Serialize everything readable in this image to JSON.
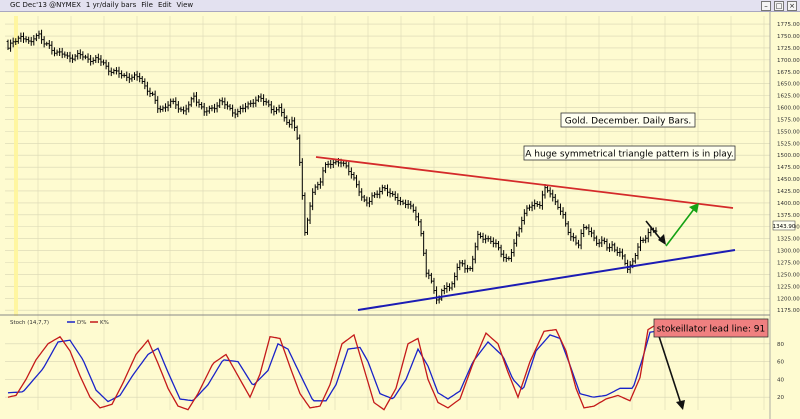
{
  "menubar": {
    "symbol": "GC Dec'13 @NYMEX",
    "period": "1 yr/daily bars",
    "items": [
      "File",
      "Edit",
      "View"
    ]
  },
  "chart_data": [
    {
      "type": "line",
      "variant": "ohlc-bars",
      "title": "",
      "xlabel": "",
      "ylabel": "",
      "ylim": [
        1167,
        1792
      ],
      "y_ticks": [
        "1775.00",
        "1750.00",
        "1725.00",
        "1700.00",
        "1675.00",
        "1650.00",
        "1625.00",
        "1600.00",
        "1575.00",
        "1550.00",
        "1525.00",
        "1500.00",
        "1475.00",
        "1450.00",
        "1425.00",
        "1400.00",
        "1375.00",
        "1350.00",
        "1325.00",
        "1300.00",
        "1275.00",
        "1250.00",
        "1225.00",
        "1200.00",
        "1175.00"
      ],
      "last_price": "1343.90",
      "grid": true,
      "bars_count": 252,
      "price_anchors": [
        [
          0,
          1722
        ],
        [
          6,
          1742
        ],
        [
          12,
          1748
        ],
        [
          18,
          1742
        ],
        [
          22,
          1732
        ],
        [
          26,
          1750
        ],
        [
          30,
          1756
        ],
        [
          35,
          1735
        ],
        [
          42,
          1728
        ],
        [
          48,
          1715
        ],
        [
          55,
          1712
        ],
        [
          60,
          1705
        ],
        [
          68,
          1708
        ],
        [
          72,
          1710
        ],
        [
          80,
          1702
        ],
        [
          88,
          1700
        ],
        [
          95,
          1696
        ],
        [
          100,
          1680
        ],
        [
          108,
          1672
        ],
        [
          112,
          1672
        ],
        [
          118,
          1665
        ],
        [
          124,
          1662
        ],
        [
          132,
          1665
        ],
        [
          138,
          1640
        ],
        [
          145,
          1622
        ],
        [
          150,
          1600
        ],
        [
          156,
          1598
        ],
        [
          162,
          1610
        ],
        [
          168,
          1608
        ],
        [
          175,
          1590
        ],
        [
          181,
          1605
        ],
        [
          186,
          1625
        ],
        [
          191,
          1608
        ],
        [
          196,
          1590
        ],
        [
          204,
          1598
        ],
        [
          212,
          1612
        ],
        [
          218,
          1605
        ],
        [
          224,
          1592
        ],
        [
          230,
          1590
        ],
        [
          238,
          1603
        ],
        [
          246,
          1615
        ],
        [
          252,
          1618
        ],
        [
          258,
          1612
        ],
        [
          263,
          1600
        ],
        [
          268,
          1590
        ],
        [
          272,
          1598
        ],
        [
          276,
          1582
        ],
        [
          280,
          1562
        ],
        [
          284,
          1575
        ],
        [
          288,
          1545
        ],
        [
          290,
          1520
        ],
        [
          293,
          1460
        ],
        [
          297,
          1335
        ],
        [
          300,
          1370
        ],
        [
          304,
          1420
        ],
        [
          308,
          1430
        ],
        [
          312,
          1445
        ],
        [
          316,
          1478
        ],
        [
          320,
          1482
        ],
        [
          326,
          1480
        ],
        [
          332,
          1490
        ],
        [
          338,
          1477
        ],
        [
          344,
          1455
        ],
        [
          350,
          1435
        ],
        [
          355,
          1405
        ],
        [
          360,
          1398
        ],
        [
          365,
          1415
        ],
        [
          370,
          1425
        ],
        [
          376,
          1430
        ],
        [
          382,
          1418
        ],
        [
          388,
          1415
        ],
        [
          394,
          1395
        ],
        [
          400,
          1398
        ],
        [
          406,
          1385
        ],
        [
          410,
          1365
        ],
        [
          414,
          1320
        ],
        [
          418,
          1255
        ],
        [
          422,
          1245
        ],
        [
          426,
          1220
        ],
        [
          430,
          1185
        ],
        [
          434,
          1215
        ],
        [
          438,
          1228
        ],
        [
          442,
          1220
        ],
        [
          446,
          1245
        ],
        [
          450,
          1265
        ],
        [
          454,
          1275
        ],
        [
          458,
          1262
        ],
        [
          462,
          1262
        ],
        [
          466,
          1295
        ],
        [
          470,
          1330
        ],
        [
          476,
          1328
        ],
        [
          482,
          1322
        ],
        [
          488,
          1310
        ],
        [
          492,
          1300
        ],
        [
          496,
          1288
        ],
        [
          500,
          1278
        ],
        [
          504,
          1300
        ],
        [
          508,
          1325
        ],
        [
          514,
          1370
        ],
        [
          520,
          1390
        ],
        [
          526,
          1395
        ],
        [
          532,
          1400
        ],
        [
          536,
          1430
        ],
        [
          542,
          1420
        ],
        [
          546,
          1405
        ],
        [
          550,
          1395
        ],
        [
          554,
          1380
        ],
        [
          558,
          1350
        ],
        [
          562,
          1330
        ],
        [
          566,
          1325
        ],
        [
          570,
          1312
        ],
        [
          574,
          1340
        ],
        [
          578,
          1348
        ],
        [
          584,
          1335
        ],
        [
          588,
          1320
        ],
        [
          592,
          1315
        ],
        [
          596,
          1318
        ],
        [
          600,
          1305
        ],
        [
          604,
          1312
        ],
        [
          608,
          1300
        ],
        [
          612,
          1292
        ],
        [
          616,
          1280
        ],
        [
          620,
          1262
        ],
        [
          624,
          1275
        ],
        [
          628,
          1295
        ],
        [
          632,
          1315
        ],
        [
          636,
          1325
        ],
        [
          640,
          1338
        ],
        [
          644,
          1345
        ],
        [
          648,
          1340
        ]
      ]
    },
    {
      "type": "line",
      "title": "Stoch (14,7,7)",
      "legend": [
        "D%",
        "K%"
      ],
      "ylim": [
        0,
        100
      ],
      "y_ticks": [
        "80",
        "60",
        "40",
        "20"
      ],
      "series": [
        {
          "name": "D%",
          "color": "#1a23c8",
          "anchors": [
            [
              0,
              25
            ],
            [
              15,
              26
            ],
            [
              35,
              52
            ],
            [
              50,
              82
            ],
            [
              62,
              84
            ],
            [
              75,
              62
            ],
            [
              88,
              28
            ],
            [
              100,
              15
            ],
            [
              112,
              22
            ],
            [
              125,
              45
            ],
            [
              140,
              68
            ],
            [
              150,
              75
            ],
            [
              160,
              48
            ],
            [
              172,
              18
            ],
            [
              185,
              16
            ],
            [
              200,
              34
            ],
            [
              215,
              62
            ],
            [
              230,
              60
            ],
            [
              245,
              33
            ],
            [
              260,
              50
            ],
            [
              270,
              80
            ],
            [
              280,
              74
            ],
            [
              292,
              46
            ],
            [
              305,
              16
            ],
            [
              318,
              16
            ],
            [
              328,
              34
            ],
            [
              340,
              74
            ],
            [
              352,
              76
            ],
            [
              360,
              60
            ],
            [
              372,
              24
            ],
            [
              385,
              18
            ],
            [
              398,
              40
            ],
            [
              410,
              74
            ],
            [
              420,
              55
            ],
            [
              430,
              25
            ],
            [
              440,
              18
            ],
            [
              452,
              27
            ],
            [
              465,
              60
            ],
            [
              480,
              82
            ],
            [
              495,
              66
            ],
            [
              505,
              40
            ],
            [
              515,
              28
            ],
            [
              528,
              72
            ],
            [
              542,
              90
            ],
            [
              552,
              86
            ],
            [
              562,
              56
            ],
            [
              572,
              24
            ],
            [
              585,
              20
            ],
            [
              598,
              22
            ],
            [
              612,
              30
            ],
            [
              625,
              30
            ],
            [
              635,
              65
            ],
            [
              642,
              93
            ],
            [
              648,
              94
            ]
          ]
        },
        {
          "name": "K%",
          "color": "#c41a1a",
          "anchors": [
            [
              0,
              20
            ],
            [
              8,
              22
            ],
            [
              18,
              40
            ],
            [
              28,
              62
            ],
            [
              40,
              80
            ],
            [
              52,
              88
            ],
            [
              62,
              72
            ],
            [
              72,
              44
            ],
            [
              82,
              20
            ],
            [
              92,
              8
            ],
            [
              104,
              12
            ],
            [
              115,
              36
            ],
            [
              128,
              68
            ],
            [
              140,
              84
            ],
            [
              150,
              58
            ],
            [
              160,
              30
            ],
            [
              170,
              10
            ],
            [
              180,
              6
            ],
            [
              190,
              24
            ],
            [
              205,
              58
            ],
            [
              218,
              68
            ],
            [
              230,
              44
            ],
            [
              242,
              20
            ],
            [
              252,
              46
            ],
            [
              262,
              88
            ],
            [
              272,
              86
            ],
            [
              282,
              54
            ],
            [
              292,
              24
            ],
            [
              302,
              8
            ],
            [
              312,
              10
            ],
            [
              322,
              34
            ],
            [
              334,
              80
            ],
            [
              346,
              90
            ],
            [
              356,
              52
            ],
            [
              366,
              14
            ],
            [
              376,
              6
            ],
            [
              388,
              30
            ],
            [
              400,
              80
            ],
            [
              410,
              86
            ],
            [
              420,
              40
            ],
            [
              430,
              14
            ],
            [
              440,
              8
            ],
            [
              452,
              18
            ],
            [
              465,
              58
            ],
            [
              478,
              92
            ],
            [
              490,
              80
            ],
            [
              500,
              48
            ],
            [
              510,
              20
            ],
            [
              522,
              60
            ],
            [
              536,
              94
            ],
            [
              548,
              96
            ],
            [
              558,
              72
            ],
            [
              568,
              30
            ],
            [
              576,
              8
            ],
            [
              586,
              10
            ],
            [
              598,
              18
            ],
            [
              610,
              22
            ],
            [
              622,
              16
            ],
            [
              632,
              42
            ],
            [
              640,
              96
            ],
            [
              646,
              100
            ],
            [
              650,
              96
            ]
          ]
        }
      ]
    }
  ],
  "annotations": {
    "title_box": "Gold. December. Daily Bars.",
    "pattern_box": "A huge symmetrical triangle pattern is in play.",
    "stoch_box": "stokeillator lead line: 91"
  },
  "colors": {
    "background": "#fefbd0",
    "resistance_line": "#d42a2a",
    "support_line": "#1c1cb4",
    "up_arrow": "#14a214",
    "stoch_box": "#f08080"
  }
}
